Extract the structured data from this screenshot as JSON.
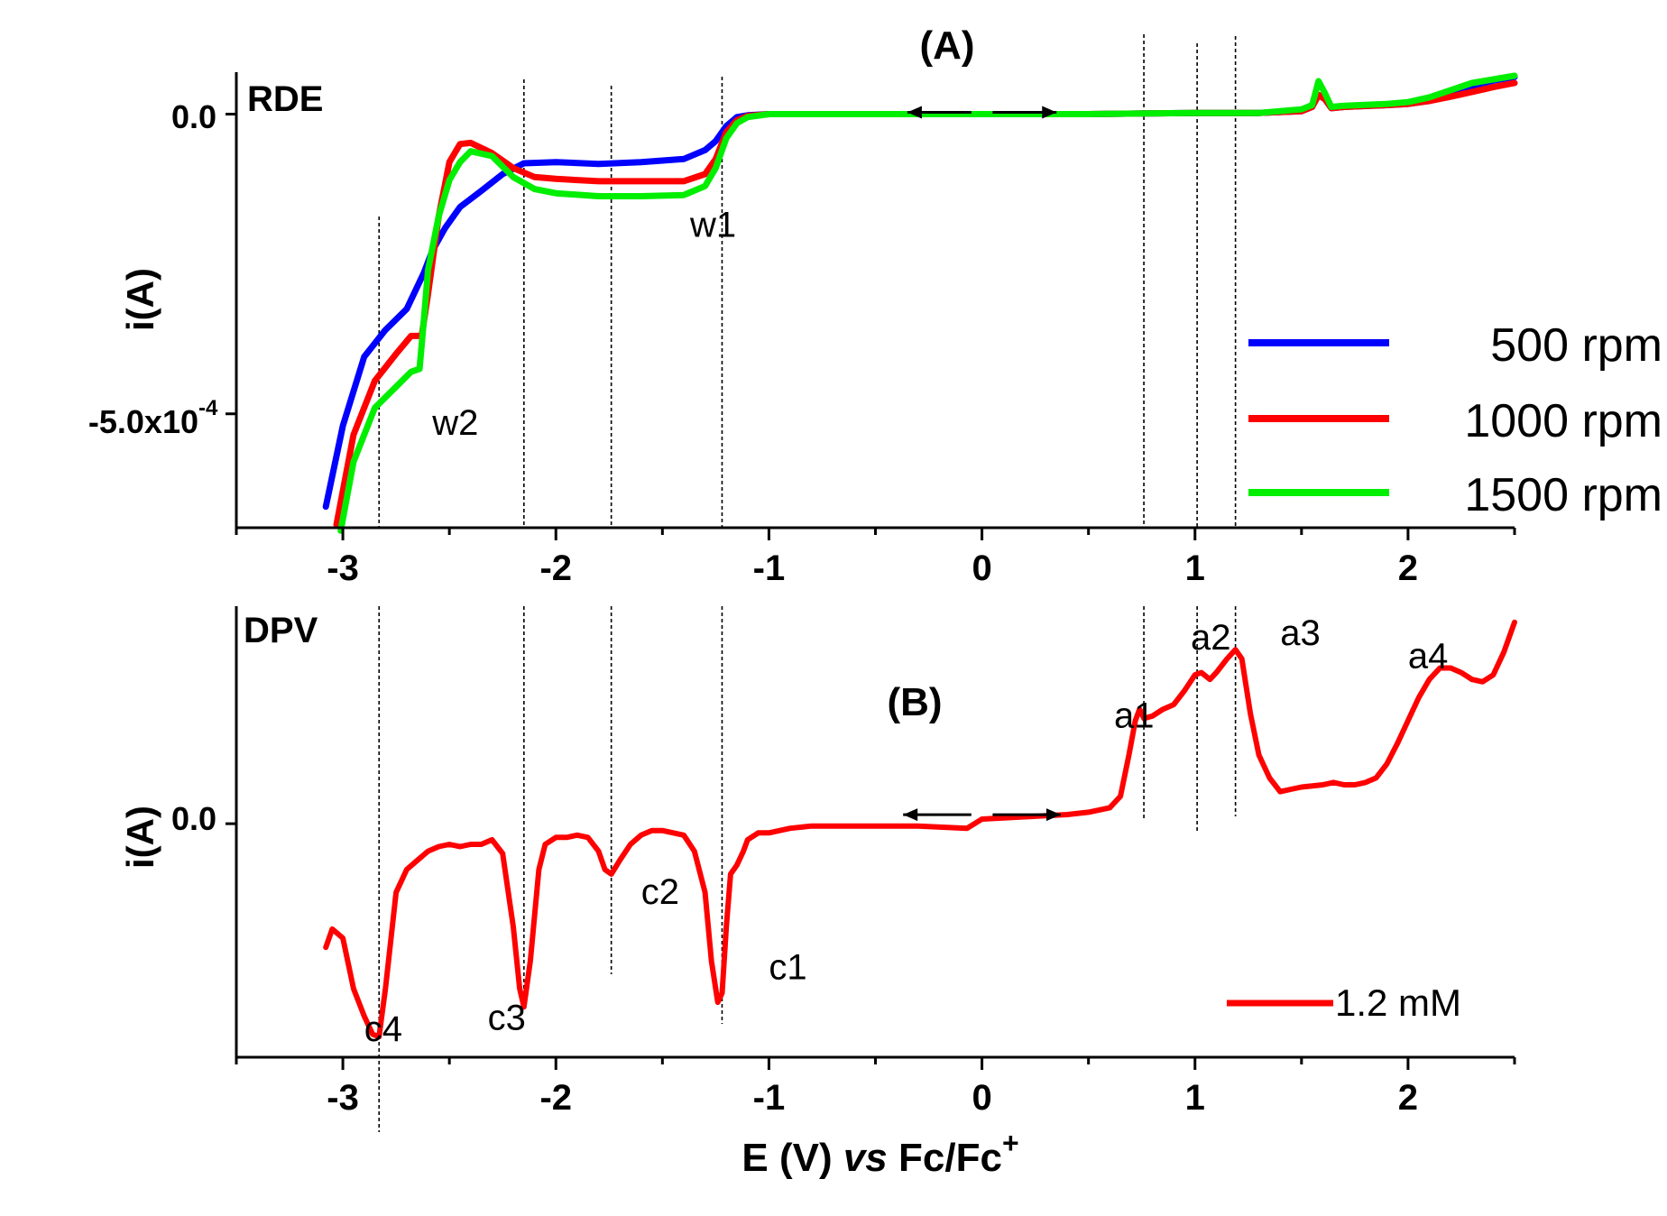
{
  "chart_data": [
    {
      "panel": "A",
      "type": "line",
      "title": "(A)",
      "method_label": "RDE",
      "xlabel": "E (V) vs Fc/Fc+",
      "ylabel": "i(A)",
      "xlim": [
        -3.5,
        2.5
      ],
      "ylim": [
        -0.00069,
        7e-05
      ],
      "xticks": [
        -3,
        -2,
        -1,
        0,
        1,
        2
      ],
      "xtick_labels": [
        "-3",
        "-2",
        "-1",
        "0",
        "1",
        "2"
      ],
      "yticks": [
        0.0,
        -0.0005
      ],
      "ytick_labels": [
        "0.0",
        "-5.0x10",
        "-4"
      ],
      "vlines": [
        -2.83,
        -2.15,
        -1.74,
        -1.22,
        0.76,
        1.01,
        1.19
      ],
      "scan_arrows": [
        {
          "from": -0.05,
          "to": -0.35
        },
        {
          "from": 0.05,
          "to": 0.35
        }
      ],
      "annotations": [
        {
          "text": "w1",
          "x": -1.37,
          "y": -0.000205
        },
        {
          "text": "w2",
          "x": -2.58,
          "y": -0.000535
        }
      ],
      "legend": {
        "position": "right",
        "labels": [
          "500 rpm",
          "1000 rpm",
          "1500 rpm"
        ]
      },
      "series": [
        {
          "name": "500 rpm",
          "color": "#0000ff",
          "x": [
            -3.08,
            -3.0,
            -2.9,
            -2.8,
            -2.7,
            -2.62,
            -2.58,
            -2.52,
            -2.45,
            -2.35,
            -2.25,
            -2.15,
            -2.0,
            -1.8,
            -1.6,
            -1.4,
            -1.3,
            -1.25,
            -1.2,
            -1.15,
            -1.1,
            -1.0,
            -0.8,
            -0.5,
            0.0,
            0.5,
            1.0,
            1.3,
            1.5,
            1.55,
            1.58,
            1.61,
            1.64,
            1.7,
            1.9,
            2.0,
            2.1,
            2.2,
            2.3,
            2.4,
            2.5
          ],
          "y": [
            -0.000655,
            -0.00052,
            -0.000405,
            -0.00036,
            -0.000325,
            -0.000265,
            -0.000228,
            -0.00019,
            -0.000155,
            -0.000128,
            -0.0001,
            -8.2e-05,
            -8e-05,
            -8.3e-05,
            -8e-05,
            -7.5e-05,
            -6e-05,
            -4.5e-05,
            -2e-05,
            -5e-06,
            -2e-06,
            0.0,
            0.0,
            0.0,
            0.0,
            0.0,
            2e-06,
            2e-06,
            5e-06,
            1.2e-05,
            3.2e-05,
            2.5e-05,
            1e-05,
            1.2e-05,
            1.5e-05,
            1.7e-05,
            2.2e-05,
            3.4e-05,
            4.7e-05,
            5.6e-05,
            6.2e-05
          ]
        },
        {
          "name": "1000 rpm",
          "color": "#ff0000",
          "x": [
            -3.03,
            -2.95,
            -2.85,
            -2.75,
            -2.68,
            -2.63,
            -2.6,
            -2.55,
            -2.5,
            -2.45,
            -2.4,
            -2.3,
            -2.2,
            -2.1,
            -2.0,
            -1.8,
            -1.6,
            -1.4,
            -1.3,
            -1.25,
            -1.2,
            -1.15,
            -1.1,
            -1.0,
            -0.8,
            -0.5,
            0.0,
            0.5,
            1.0,
            1.3,
            1.5,
            1.55,
            1.58,
            1.61,
            1.64,
            1.7,
            1.9,
            2.0,
            2.1,
            2.2,
            2.3,
            2.4,
            2.5
          ],
          "y": [
            -0.000685,
            -0.000535,
            -0.000445,
            -0.0004,
            -0.00037,
            -0.00037,
            -0.0003,
            -0.00017,
            -8e-05,
            -5e-05,
            -4.8e-05,
            -6.5e-05,
            -9e-05,
            -0.000105,
            -0.000108,
            -0.000112,
            -0.000112,
            -0.000112,
            -0.0001,
            -7.5e-05,
            -3e-05,
            -1e-05,
            -3e-06,
            0.0,
            0.0,
            0.0,
            0.0,
            0.0,
            2e-06,
            2e-06,
            5e-06,
            1.2e-05,
            3.2e-05,
            2.5e-05,
            1e-05,
            1.2e-05,
            1.5e-05,
            1.7e-05,
            2.2e-05,
            2.9e-05,
            3.7e-05,
            4.5e-05,
            5.2e-05
          ]
        },
        {
          "name": "1500 rpm",
          "color": "#00ee00",
          "x": [
            -3.01,
            -2.95,
            -2.85,
            -2.75,
            -2.68,
            -2.64,
            -2.62,
            -2.6,
            -2.55,
            -2.5,
            -2.45,
            -2.4,
            -2.3,
            -2.2,
            -2.1,
            -2.0,
            -1.8,
            -1.6,
            -1.4,
            -1.3,
            -1.25,
            -1.2,
            -1.15,
            -1.1,
            -1.0,
            -0.8,
            -0.5,
            0.0,
            0.5,
            1.0,
            1.3,
            1.5,
            1.55,
            1.58,
            1.61,
            1.64,
            1.7,
            1.9,
            2.0,
            2.1,
            2.2,
            2.3,
            2.4,
            2.5
          ],
          "y": [
            -0.000695,
            -0.00058,
            -0.00049,
            -0.000455,
            -0.00043,
            -0.000425,
            -0.000345,
            -0.00026,
            -0.00017,
            -0.00011,
            -8e-05,
            -6.2e-05,
            -7e-05,
            -0.000105,
            -0.000125,
            -0.000132,
            -0.000137,
            -0.000137,
            -0.000135,
            -0.00012,
            -9e-05,
            -4e-05,
            -1.5e-05,
            -5e-06,
            0.0,
            0.0,
            0.0,
            0.0,
            0.0,
            2e-06,
            2e-06,
            8e-06,
            1.5e-05,
            5.5e-05,
            3.5e-05,
            1.2e-05,
            1.4e-05,
            1.7e-05,
            2e-05,
            2.8e-05,
            4e-05,
            5.2e-05,
            5.8e-05,
            6.4e-05
          ]
        }
      ]
    },
    {
      "panel": "B",
      "type": "line",
      "title": "(B)",
      "method_label": "DPV",
      "xlabel": "E (V) vs Fc/Fc+",
      "ylabel": "i(A)",
      "xlim": [
        -3.5,
        2.5
      ],
      "ylim": [
        -1.02,
        0.95
      ],
      "yaxis_note": "relative units; only 0.0 tick labeled",
      "xticks": [
        -3,
        -2,
        -1,
        0,
        1,
        2
      ],
      "xtick_labels": [
        "-3",
        "-2",
        "-1",
        "0",
        "1",
        "2"
      ],
      "yticks": [
        0.0
      ],
      "ytick_labels": [
        "0.0"
      ],
      "vlines": [
        -2.83,
        -2.15,
        -1.74,
        -1.22,
        0.76,
        1.01,
        1.19
      ],
      "scan_arrows": [
        {
          "from": -0.05,
          "to": -0.37
        },
        {
          "from": 0.05,
          "to": 0.37
        }
      ],
      "annotations": [
        {
          "text": "c1",
          "x": -1.0,
          "y": -0.68
        },
        {
          "text": "c2",
          "x": -1.6,
          "y": -0.35
        },
        {
          "text": "c3",
          "x": -2.32,
          "y": -0.9
        },
        {
          "text": "c4",
          "x": -2.9,
          "y": -0.95
        },
        {
          "text": "a1",
          "x": 0.62,
          "y": 0.42
        },
        {
          "text": "a2",
          "x": 0.98,
          "y": 0.76
        },
        {
          "text": "a3",
          "x": 1.4,
          "y": 0.78
        },
        {
          "text": "a4",
          "x": 2.0,
          "y": 0.68
        }
      ],
      "legend": {
        "position": "bottom-right",
        "labels": [
          "1.2 mM"
        ]
      },
      "series": [
        {
          "name": "1.2 mM",
          "color": "#ff0000",
          "x": [
            -3.08,
            -3.05,
            -3.0,
            -2.95,
            -2.9,
            -2.86,
            -2.83,
            -2.8,
            -2.75,
            -2.7,
            -2.65,
            -2.6,
            -2.55,
            -2.5,
            -2.45,
            -2.4,
            -2.35,
            -2.3,
            -2.25,
            -2.2,
            -2.17,
            -2.15,
            -2.12,
            -2.08,
            -2.05,
            -2.0,
            -1.95,
            -1.9,
            -1.85,
            -1.8,
            -1.77,
            -1.74,
            -1.7,
            -1.65,
            -1.6,
            -1.55,
            -1.5,
            -1.4,
            -1.35,
            -1.3,
            -1.27,
            -1.24,
            -1.22,
            -1.2,
            -1.18,
            -1.15,
            -1.12,
            -1.1,
            -1.05,
            -1.0,
            -0.9,
            -0.8,
            -0.6,
            -0.4,
            -0.3,
            -0.07,
            0.0,
            0.2,
            0.4,
            0.5,
            0.6,
            0.65,
            0.69,
            0.72,
            0.74,
            0.76,
            0.8,
            0.85,
            0.9,
            0.95,
            1.0,
            1.03,
            1.07,
            1.1,
            1.15,
            1.19,
            1.22,
            1.26,
            1.3,
            1.35,
            1.4,
            1.45,
            1.5,
            1.6,
            1.65,
            1.7,
            1.75,
            1.8,
            1.85,
            1.9,
            1.95,
            2.0,
            2.05,
            2.1,
            2.15,
            2.2,
            2.25,
            2.3,
            2.35,
            2.4,
            2.45,
            2.5
          ],
          "y": [
            -0.54,
            -0.46,
            -0.5,
            -0.72,
            -0.84,
            -0.92,
            -0.93,
            -0.72,
            -0.3,
            -0.2,
            -0.16,
            -0.12,
            -0.1,
            -0.09,
            -0.1,
            -0.09,
            -0.09,
            -0.07,
            -0.13,
            -0.45,
            -0.72,
            -0.8,
            -0.6,
            -0.2,
            -0.09,
            -0.06,
            -0.06,
            -0.05,
            -0.06,
            -0.12,
            -0.2,
            -0.22,
            -0.16,
            -0.09,
            -0.05,
            -0.03,
            -0.03,
            -0.05,
            -0.12,
            -0.3,
            -0.6,
            -0.78,
            -0.74,
            -0.45,
            -0.22,
            -0.18,
            -0.12,
            -0.07,
            -0.04,
            -0.04,
            -0.02,
            -0.01,
            -0.01,
            -0.01,
            -0.01,
            -0.02,
            0.02,
            0.03,
            0.04,
            0.05,
            0.07,
            0.12,
            0.3,
            0.45,
            0.5,
            0.46,
            0.47,
            0.5,
            0.52,
            0.58,
            0.65,
            0.66,
            0.63,
            0.66,
            0.72,
            0.76,
            0.72,
            0.48,
            0.3,
            0.2,
            0.14,
            0.15,
            0.16,
            0.17,
            0.18,
            0.17,
            0.17,
            0.18,
            0.2,
            0.26,
            0.35,
            0.45,
            0.55,
            0.63,
            0.68,
            0.68,
            0.66,
            0.63,
            0.62,
            0.65,
            0.75,
            0.88
          ]
        }
      ]
    }
  ],
  "x_axis_title": {
    "prefix": "E (V) ",
    "italic": "vs",
    "suffix": " Fc/Fc",
    "superscript": "+"
  }
}
